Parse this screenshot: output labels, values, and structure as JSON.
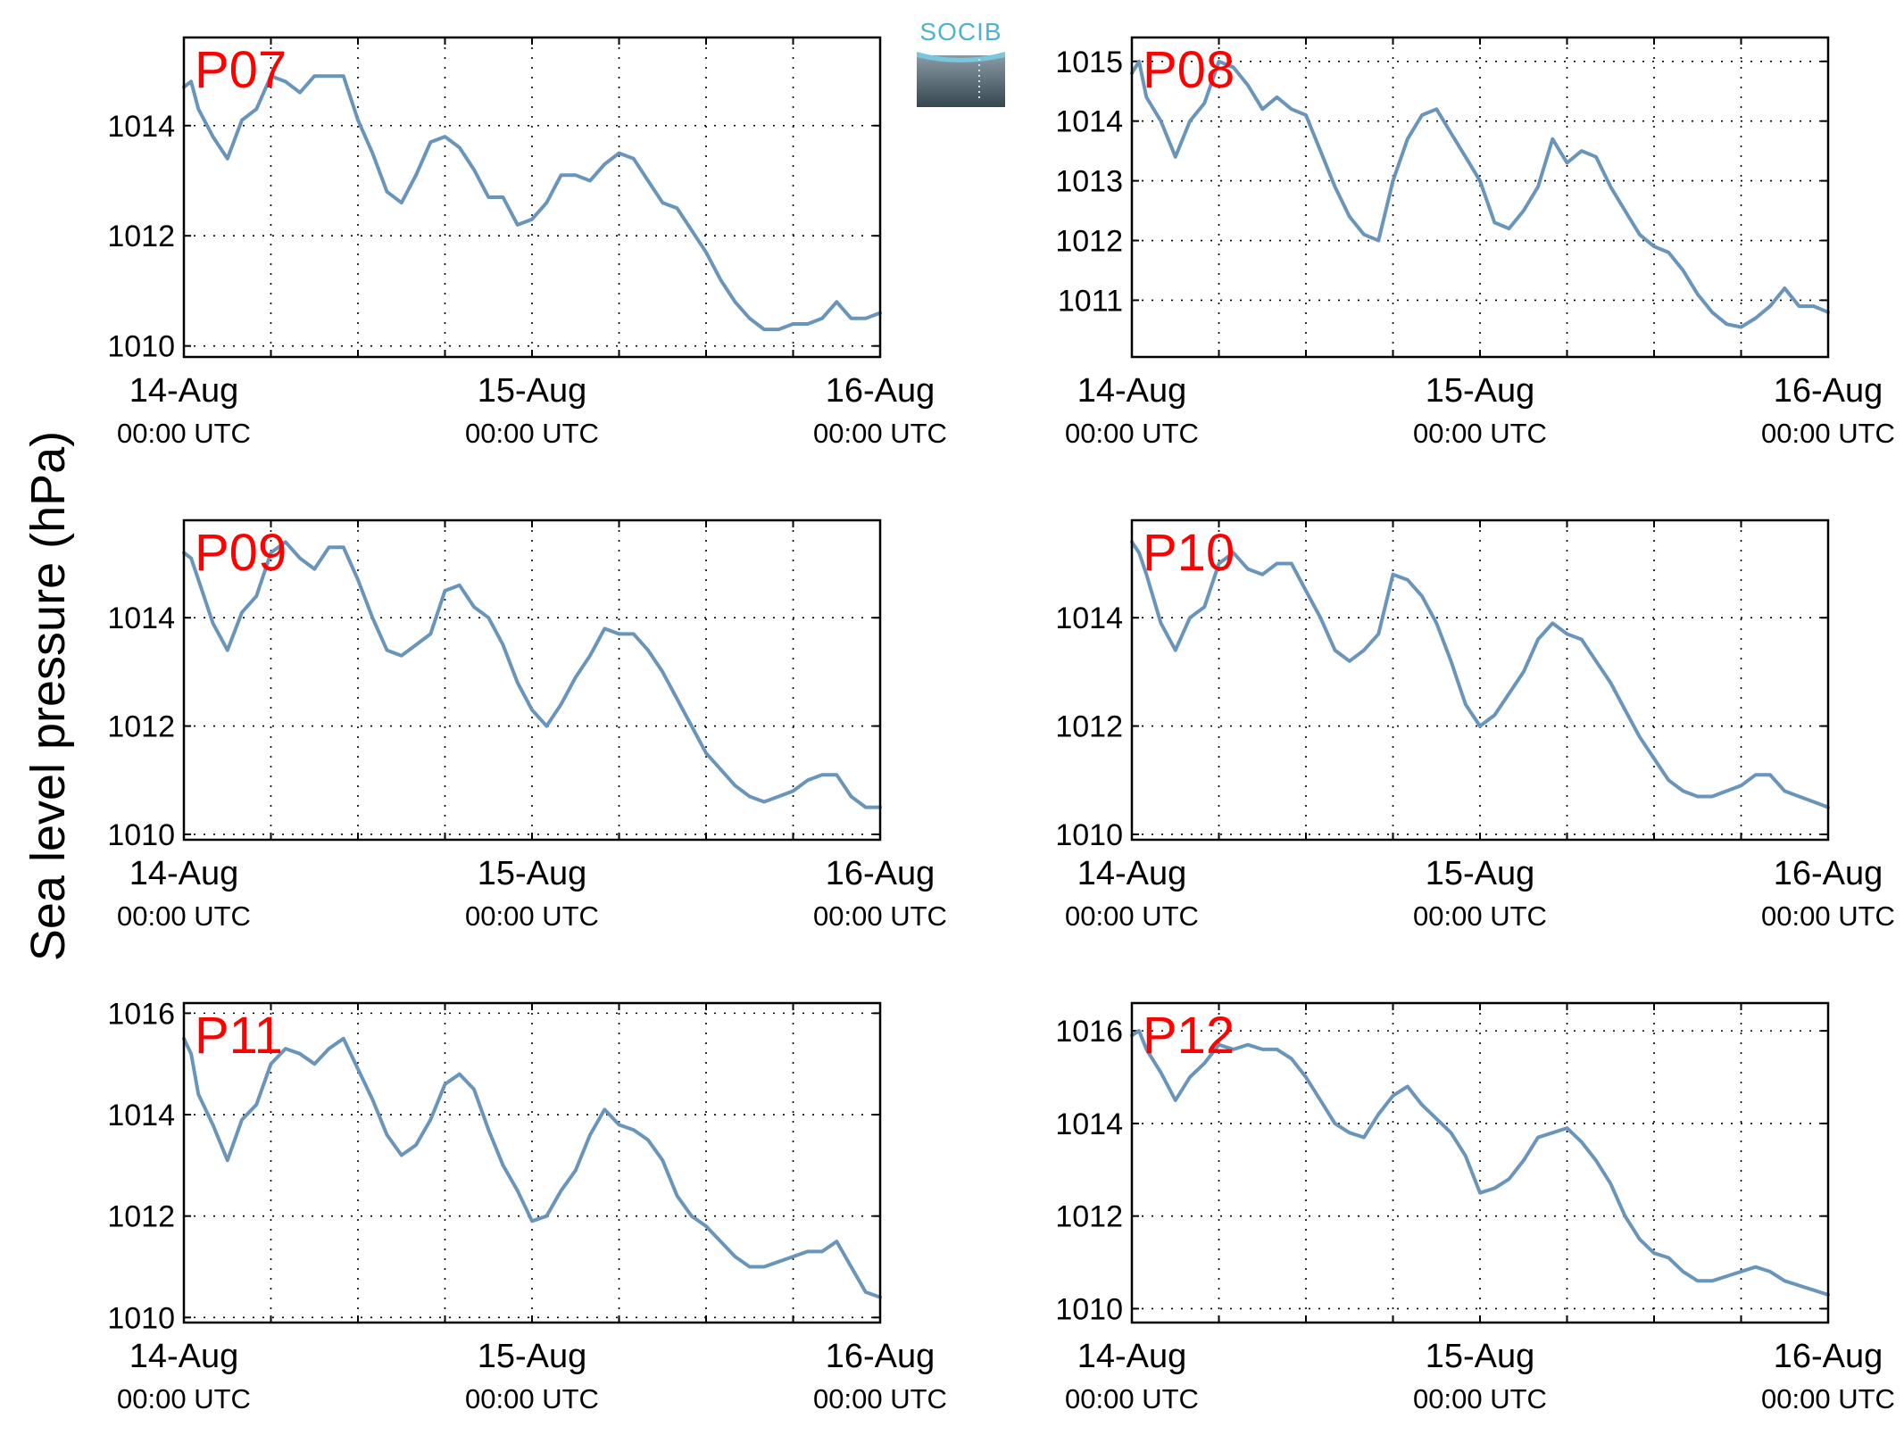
{
  "figure": {
    "ylabel": "Sea level pressure (hPa)",
    "logo_text": "SOCIB",
    "line_color": "#6a95bb",
    "label_color": "#ff0000"
  },
  "chart_data": [
    {
      "type": "line",
      "label": "P07",
      "x_ticks": [
        "14-Aug",
        "15-Aug",
        "16-Aug"
      ],
      "x_tick_sub": "00:00 UTC",
      "xlim": [
        0,
        48
      ],
      "ylim": [
        1009.8,
        1015.6
      ],
      "y_ticks": [
        1010,
        1012,
        1014
      ],
      "grid": true,
      "x": [
        0,
        0.5,
        1,
        2,
        3,
        4,
        5,
        6,
        7,
        8,
        9,
        10,
        11,
        12,
        13,
        14,
        15,
        16,
        17,
        18,
        19,
        20,
        21,
        22,
        23,
        24,
        25,
        26,
        27,
        28,
        29,
        30,
        31,
        32,
        33,
        34,
        35,
        36,
        37,
        38,
        39,
        40,
        41,
        42,
        43,
        44,
        45,
        46,
        47,
        48
      ],
      "y": [
        1014.7,
        1014.8,
        1014.3,
        1013.8,
        1013.4,
        1014.1,
        1014.3,
        1014.9,
        1014.8,
        1014.6,
        1014.9,
        1014.9,
        1014.9,
        1014.1,
        1013.5,
        1012.8,
        1012.6,
        1013.1,
        1013.7,
        1013.8,
        1013.6,
        1013.2,
        1012.7,
        1012.7,
        1012.2,
        1012.3,
        1012.6,
        1013.1,
        1013.1,
        1013.0,
        1013.3,
        1013.5,
        1013.4,
        1013.0,
        1012.6,
        1012.5,
        1012.1,
        1011.7,
        1011.2,
        1010.8,
        1010.5,
        1010.3,
        1010.3,
        1010.4,
        1010.4,
        1010.5,
        1010.8,
        1010.5,
        1010.5,
        1010.6
      ]
    },
    {
      "type": "line",
      "label": "P08",
      "x_ticks": [
        "14-Aug",
        "15-Aug",
        "16-Aug"
      ],
      "x_tick_sub": "00:00 UTC",
      "xlim": [
        0,
        48
      ],
      "ylim": [
        1010.05,
        1015.4
      ],
      "y_ticks": [
        1011,
        1012,
        1013,
        1014,
        1015
      ],
      "grid": true,
      "x": [
        0,
        0.5,
        1,
        2,
        3,
        4,
        5,
        6,
        7,
        8,
        9,
        10,
        11,
        12,
        13,
        14,
        15,
        16,
        17,
        18,
        19,
        20,
        21,
        22,
        23,
        24,
        25,
        26,
        27,
        28,
        29,
        30,
        31,
        32,
        33,
        34,
        35,
        36,
        37,
        38,
        39,
        40,
        41,
        42,
        43,
        44,
        45,
        46,
        47,
        48
      ],
      "y": [
        1014.8,
        1015.0,
        1014.4,
        1014.0,
        1013.4,
        1014.0,
        1014.3,
        1015.0,
        1014.9,
        1014.6,
        1014.2,
        1014.4,
        1014.2,
        1014.1,
        1013.5,
        1012.9,
        1012.4,
        1012.1,
        1012.0,
        1013.0,
        1013.7,
        1014.1,
        1014.2,
        1013.8,
        1013.4,
        1013.0,
        1012.3,
        1012.2,
        1012.5,
        1012.9,
        1013.7,
        1013.3,
        1013.5,
        1013.4,
        1012.9,
        1012.5,
        1012.1,
        1011.9,
        1011.8,
        1011.5,
        1011.1,
        1010.8,
        1010.6,
        1010.55,
        1010.7,
        1010.9,
        1011.2,
        1010.9,
        1010.9,
        1010.8
      ]
    },
    {
      "type": "line",
      "label": "P09",
      "x_ticks": [
        "14-Aug",
        "15-Aug",
        "16-Aug"
      ],
      "x_tick_sub": "00:00 UTC",
      "xlim": [
        0,
        48
      ],
      "ylim": [
        1009.9,
        1015.8
      ],
      "y_ticks": [
        1010,
        1012,
        1014
      ],
      "grid": true,
      "x": [
        0,
        0.5,
        1,
        2,
        3,
        4,
        5,
        6,
        7,
        8,
        9,
        10,
        11,
        12,
        13,
        14,
        15,
        16,
        17,
        18,
        19,
        20,
        21,
        22,
        23,
        24,
        25,
        26,
        27,
        28,
        29,
        30,
        31,
        32,
        33,
        34,
        35,
        36,
        37,
        38,
        39,
        40,
        41,
        42,
        43,
        44,
        45,
        46,
        47,
        48
      ],
      "y": [
        1015.2,
        1015.1,
        1014.7,
        1013.9,
        1013.4,
        1014.1,
        1014.4,
        1015.2,
        1015.4,
        1015.1,
        1014.9,
        1015.3,
        1015.3,
        1014.7,
        1014.0,
        1013.4,
        1013.3,
        1013.5,
        1013.7,
        1014.5,
        1014.6,
        1014.2,
        1014.0,
        1013.5,
        1012.8,
        1012.3,
        1012.0,
        1012.4,
        1012.9,
        1013.3,
        1013.8,
        1013.7,
        1013.7,
        1013.4,
        1013.0,
        1012.5,
        1012.0,
        1011.5,
        1011.2,
        1010.9,
        1010.7,
        1010.6,
        1010.7,
        1010.8,
        1011.0,
        1011.1,
        1011.1,
        1010.7,
        1010.5,
        1010.5
      ]
    },
    {
      "type": "line",
      "label": "P10",
      "x_ticks": [
        "14-Aug",
        "15-Aug",
        "16-Aug"
      ],
      "x_tick_sub": "00:00 UTC",
      "xlim": [
        0,
        48
      ],
      "ylim": [
        1009.9,
        1015.8
      ],
      "y_ticks": [
        1010,
        1012,
        1014
      ],
      "grid": true,
      "x": [
        0,
        0.5,
        1,
        2,
        3,
        4,
        5,
        6,
        7,
        8,
        9,
        10,
        11,
        12,
        13,
        14,
        15,
        16,
        17,
        18,
        19,
        20,
        21,
        22,
        23,
        24,
        25,
        26,
        27,
        28,
        29,
        30,
        31,
        32,
        33,
        34,
        35,
        36,
        37,
        38,
        39,
        40,
        41,
        42,
        43,
        44,
        45,
        46,
        47,
        48
      ],
      "y": [
        1015.4,
        1015.2,
        1014.8,
        1013.9,
        1013.4,
        1014.0,
        1014.2,
        1015.0,
        1015.2,
        1014.9,
        1014.8,
        1015.0,
        1015.0,
        1014.5,
        1014.0,
        1013.4,
        1013.2,
        1013.4,
        1013.7,
        1014.8,
        1014.7,
        1014.4,
        1013.9,
        1013.2,
        1012.4,
        1012.0,
        1012.2,
        1012.6,
        1013.0,
        1013.6,
        1013.9,
        1013.7,
        1013.6,
        1013.2,
        1012.8,
        1012.3,
        1011.8,
        1011.4,
        1011.0,
        1010.8,
        1010.7,
        1010.7,
        1010.8,
        1010.9,
        1011.1,
        1011.1,
        1010.8,
        1010.7,
        1010.6,
        1010.5
      ]
    },
    {
      "type": "line",
      "label": "P11",
      "x_ticks": [
        "14-Aug",
        "15-Aug",
        "16-Aug"
      ],
      "x_tick_sub": "00:00 UTC",
      "xlim": [
        0,
        48
      ],
      "ylim": [
        1009.9,
        1016.2
      ],
      "y_ticks": [
        1010,
        1012,
        1014,
        1016
      ],
      "grid": true,
      "x": [
        0,
        0.5,
        1,
        2,
        3,
        4,
        5,
        6,
        7,
        8,
        9,
        10,
        11,
        12,
        13,
        14,
        15,
        16,
        17,
        18,
        19,
        20,
        21,
        22,
        23,
        24,
        25,
        26,
        27,
        28,
        29,
        30,
        31,
        32,
        33,
        34,
        35,
        36,
        37,
        38,
        39,
        40,
        41,
        42,
        43,
        44,
        45,
        46,
        47,
        48
      ],
      "y": [
        1015.5,
        1015.2,
        1014.4,
        1013.8,
        1013.1,
        1013.9,
        1014.2,
        1015.0,
        1015.3,
        1015.2,
        1015.0,
        1015.3,
        1015.5,
        1014.9,
        1014.3,
        1013.6,
        1013.2,
        1013.4,
        1013.9,
        1014.6,
        1014.8,
        1014.5,
        1013.7,
        1013.0,
        1012.5,
        1011.9,
        1012.0,
        1012.5,
        1012.9,
        1013.6,
        1014.1,
        1013.8,
        1013.7,
        1013.5,
        1013.1,
        1012.4,
        1012.0,
        1011.8,
        1011.5,
        1011.2,
        1011.0,
        1011.0,
        1011.1,
        1011.2,
        1011.3,
        1011.3,
        1011.5,
        1011.0,
        1010.5,
        1010.4
      ]
    },
    {
      "type": "line",
      "label": "P12",
      "x_ticks": [
        "14-Aug",
        "15-Aug",
        "16-Aug"
      ],
      "x_tick_sub": "00:00 UTC",
      "xlim": [
        0,
        48
      ],
      "ylim": [
        1009.7,
        1016.6
      ],
      "y_ticks": [
        1010,
        1012,
        1014,
        1016
      ],
      "grid": true,
      "x": [
        0,
        0.5,
        1,
        2,
        3,
        4,
        5,
        6,
        7,
        8,
        9,
        10,
        11,
        12,
        13,
        14,
        15,
        16,
        17,
        18,
        19,
        20,
        21,
        22,
        23,
        24,
        25,
        26,
        27,
        28,
        29,
        30,
        31,
        32,
        33,
        34,
        35,
        36,
        37,
        38,
        39,
        40,
        41,
        42,
        43,
        44,
        45,
        46,
        47,
        48
      ],
      "y": [
        1015.9,
        1016.0,
        1015.6,
        1015.1,
        1014.5,
        1015.0,
        1015.3,
        1015.7,
        1015.6,
        1015.7,
        1015.6,
        1015.6,
        1015.4,
        1015.0,
        1014.5,
        1014.0,
        1013.8,
        1013.7,
        1014.2,
        1014.6,
        1014.8,
        1014.4,
        1014.1,
        1013.8,
        1013.3,
        1012.5,
        1012.6,
        1012.8,
        1013.2,
        1013.7,
        1013.8,
        1013.9,
        1013.6,
        1013.2,
        1012.7,
        1012.0,
        1011.5,
        1011.2,
        1011.1,
        1010.8,
        1010.6,
        1010.6,
        1010.7,
        1010.8,
        1010.9,
        1010.8,
        1010.6,
        1010.5,
        1010.4,
        1010.3
      ]
    }
  ]
}
